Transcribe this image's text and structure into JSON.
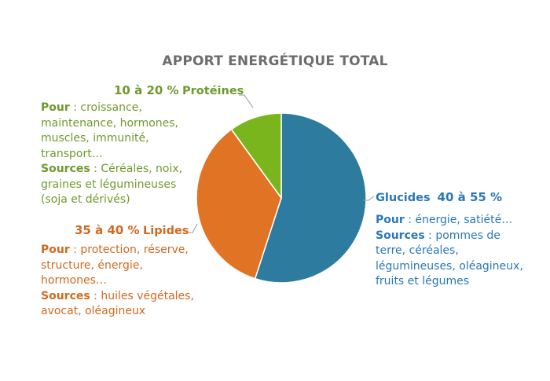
{
  "title": "APPORT ENERGÉTIQUE TOTAL",
  "colors": {
    "proteines": "#7ab51d",
    "lipides": "#e07424",
    "glucides": "#2e7ba0",
    "proteines_text": "#6e9a2c",
    "lipides_text": "#cf6a20",
    "glucides_text": "#2a78b5",
    "title": "#6d6d6d"
  },
  "chart_data": {
    "type": "pie",
    "title": "APPORT ENERGÉTIQUE TOTAL",
    "slices": [
      {
        "name": "Glucides",
        "range": "40 à 55 %",
        "value": 55
      },
      {
        "name": "Lipides",
        "range": "35 à 40 %",
        "value": 35
      },
      {
        "name": "Protéines",
        "range": "10 à 20 %",
        "value": 10
      }
    ]
  },
  "labels": {
    "proteines": {
      "pct": "10 à 20 %",
      "name": "Protéines",
      "pour_label": "Pour",
      "pour_lines": [
        " : croissance,",
        "maintenance, hormones,",
        "muscles, immunité,",
        "transport…"
      ],
      "sources_label": "Sources",
      "sources_lines": [
        " : Céréales, noix,",
        "graines et légumineuses",
        "(soja et dérivés)"
      ]
    },
    "lipides": {
      "pct": "35 à 40 %",
      "name": "Lipides",
      "pour_label": "Pour",
      "pour_lines": [
        " : protection, réserve,",
        "structure, énergie,",
        "hormones…"
      ],
      "sources_label": "Sources",
      "sources_lines": [
        " : huiles végétales,",
        "avocat, oléagineux"
      ]
    },
    "glucides": {
      "name": "Glucides",
      "pct": "40 à 55 %",
      "pour_label": "Pour",
      "pour_lines": [
        " : énergie, satiété…"
      ],
      "sources_label": "Sources",
      "sources_lines": [
        " : pommes de",
        "terre, céréales,",
        "légumineuses, oléagineux,",
        "fruits et légumes"
      ]
    }
  }
}
